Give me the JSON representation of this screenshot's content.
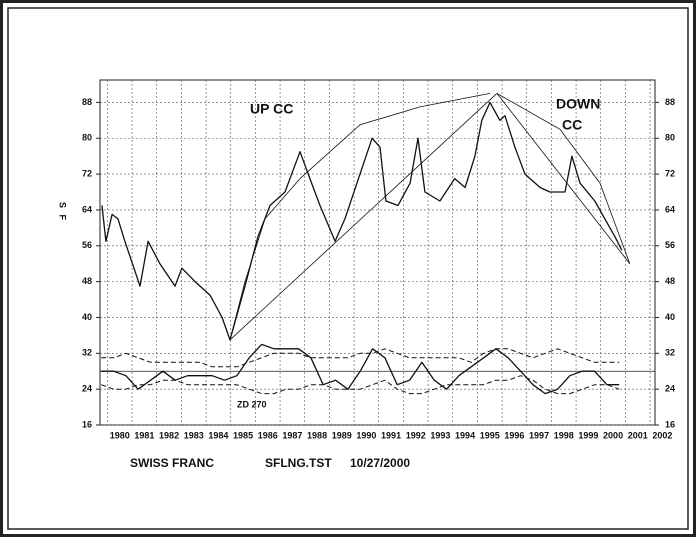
{
  "chart_data": {
    "type": "line",
    "ylabel": "S F",
    "xlim": [
      1979.7,
      2002.2
    ],
    "ylim": [
      16,
      93
    ],
    "xticks": [
      1980,
      1981,
      1982,
      1983,
      1984,
      1985,
      1986,
      1987,
      1988,
      1989,
      1990,
      1991,
      1992,
      1993,
      1994,
      1995,
      1996,
      1997,
      1998,
      1999,
      2000,
      2001,
      2002
    ],
    "yticks": [
      16,
      24,
      32,
      40,
      48,
      56,
      64,
      72,
      80,
      88
    ],
    "grid": true,
    "reference_line": 28,
    "annotations": [
      "UP CC",
      "DOWN",
      "CC",
      "ZD 270"
    ],
    "footer": [
      "SWISS FRANC",
      "SFLNG.TST",
      "10/27/2000"
    ],
    "series": [
      {
        "color": "#111111",
        "width": 1.3,
        "dash": false,
        "x": [
          1979.78,
          1979.94,
          1980.19,
          1980.43,
          1980.71,
          1981.32,
          1981.65,
          1982.13,
          1982.74,
          1983.02,
          1983.55,
          1984.16,
          1984.65,
          1984.97,
          1985.58,
          1986.1,
          1986.59,
          1987.2,
          1987.81,
          1988.21,
          1988.62,
          1989.23,
          1989.63,
          1990.24,
          1990.73,
          1991.05,
          1991.29,
          1991.78,
          1992.27,
          1992.59,
          1992.87,
          1993.48,
          1994.08,
          1994.5,
          1994.9,
          1995.18,
          1995.51,
          1995.91,
          1996.12,
          1996.52,
          1996.93,
          1997.54,
          1997.94,
          1998.55,
          1998.83,
          1999.16,
          1999.76,
          2000.17,
          2000.58,
          2000.86
        ],
        "values": [
          65,
          57,
          63,
          62,
          57,
          47,
          57,
          52,
          47,
          51,
          48,
          45,
          40,
          35,
          47,
          58,
          65,
          68,
          77,
          71,
          65,
          57,
          62,
          72,
          80,
          78,
          66,
          65,
          70,
          80,
          68,
          66,
          71,
          69,
          76,
          84,
          88,
          84,
          85,
          78,
          72,
          69,
          68,
          68,
          76,
          70,
          66,
          62,
          58,
          55
        ]
      },
      {
        "color": "#111111",
        "width": 0.8,
        "dash": false,
        "x": [
          1984.97,
          1985.58,
          1986.39,
          1987.81,
          1990.24,
          1992.67,
          1995.51
        ],
        "values": [
          35,
          48,
          62,
          71,
          83,
          87,
          90
        ]
      },
      {
        "color": "#111111",
        "width": 0.8,
        "dash": false,
        "x": [
          1984.97,
          1995.79
        ],
        "values": [
          35,
          90
        ]
      },
      {
        "color": "#111111",
        "width": 0.8,
        "dash": false,
        "x": [
          1995.79,
          2001.18
        ],
        "values": [
          90,
          52
        ]
      },
      {
        "color": "#111111",
        "width": 0.8,
        "dash": false,
        "x": [
          1995.79,
          1998.35,
          1999.97,
          2001.18
        ],
        "values": [
          90,
          82,
          70,
          52
        ]
      },
      {
        "color": "#111111",
        "width": 1.3,
        "dash": false,
        "x": [
          1979.75,
          1980.25,
          1980.75,
          1981.25,
          1981.75,
          1982.25,
          1982.75,
          1983.25,
          1983.75,
          1984.25,
          1984.75,
          1985.25,
          1985.75,
          1986.25,
          1986.75,
          1987.25,
          1987.75,
          1988.25,
          1988.75,
          1989.25,
          1989.75,
          1990.25,
          1990.75,
          1991.25,
          1991.75,
          1992.25,
          1992.75,
          1993.25,
          1993.75,
          1994.25,
          1994.75,
          1995.25,
          1995.75,
          1996.25,
          1996.75,
          1997.25,
          1997.75,
          1998.25,
          1998.75,
          1999.25,
          1999.75,
          2000.25,
          2000.75
        ],
        "values": [
          28,
          28,
          27,
          24,
          26,
          28,
          26,
          27,
          27,
          27,
          26,
          27,
          31,
          34,
          33,
          33,
          33,
          31,
          25,
          26,
          24,
          28,
          33,
          31,
          25,
          26,
          30,
          26,
          24,
          27,
          29,
          31,
          33,
          31,
          28,
          25,
          23,
          24,
          27,
          28,
          28,
          25,
          25
        ]
      },
      {
        "color": "#111111",
        "width": 1,
        "dash": true,
        "x": [
          1979.75,
          1980.25,
          1980.75,
          1981.25,
          1981.75,
          1982.25,
          1982.75,
          1983.25,
          1983.75,
          1984.25,
          1984.75,
          1985.25,
          1985.75,
          1986.25,
          1986.75,
          1987.25,
          1987.75,
          1988.25,
          1988.75,
          1989.25,
          1989.75,
          1990.25,
          1990.75,
          1991.25,
          1991.75,
          1992.25,
          1992.75,
          1993.25,
          1993.75,
          1994.25,
          1994.75,
          1995.25,
          1995.75,
          1996.25,
          1996.75,
          1997.25,
          1997.75,
          1998.25,
          1998.75,
          1999.25,
          1999.75,
          2000.25,
          2000.75
        ],
        "values": [
          31,
          31,
          32,
          31,
          30,
          30,
          30,
          30,
          30,
          29,
          29,
          29,
          30,
          31,
          32,
          32,
          32,
          31,
          31,
          31,
          31,
          32,
          32,
          33,
          32,
          31,
          31,
          31,
          31,
          31,
          30,
          32,
          33,
          33,
          32,
          31,
          32,
          33,
          32,
          31,
          30,
          30,
          30
        ]
      },
      {
        "color": "#111111",
        "width": 1,
        "dash": true,
        "x": [
          1979.75,
          1980.25,
          1980.75,
          1981.25,
          1981.75,
          1982.25,
          1982.75,
          1983.25,
          1983.75,
          1984.25,
          1984.75,
          1985.25,
          1985.75,
          1986.25,
          1986.75,
          1987.25,
          1987.75,
          1988.25,
          1988.75,
          1989.25,
          1989.75,
          1990.25,
          1990.75,
          1991.25,
          1991.75,
          1992.25,
          1992.75,
          1993.25,
          1993.75,
          1994.25,
          1994.75,
          1995.25,
          1995.75,
          1996.25,
          1996.75,
          1997.25,
          1997.75,
          1998.25,
          1998.75,
          1999.25,
          1999.75,
          2000.25,
          2000.75
        ],
        "values": [
          25,
          24,
          24,
          25,
          25,
          26,
          26,
          25,
          25,
          25,
          25,
          25,
          24,
          23,
          23,
          24,
          24,
          25,
          25,
          24,
          24,
          24,
          25,
          26,
          24,
          23,
          23,
          24,
          25,
          25,
          25,
          25,
          26,
          26,
          27,
          26,
          24,
          23,
          23,
          24,
          25,
          25,
          24
        ]
      }
    ]
  }
}
